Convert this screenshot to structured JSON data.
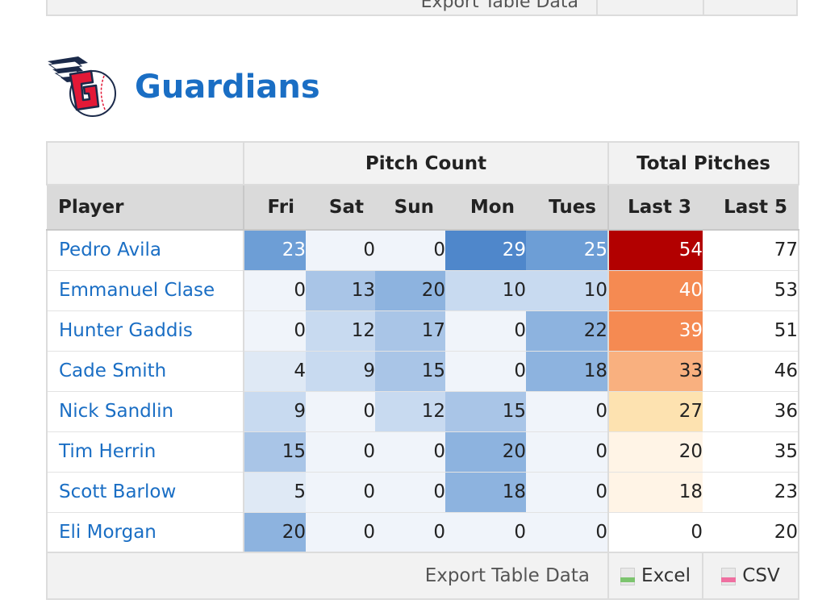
{
  "previous_footer": {
    "text": "Export Table Data"
  },
  "team": {
    "name": "Guardians",
    "logo": "guardians-wing-g-logo"
  },
  "table": {
    "group_headers": {
      "pitch_count": "Pitch Count",
      "total_pitches": "Total Pitches"
    },
    "columns": {
      "player": "Player",
      "fri": "Fri",
      "sat": "Sat",
      "sun": "Sun",
      "mon": "Mon",
      "tues": "Tues",
      "last3": "Last 3",
      "last5": "Last 5"
    },
    "rows": [
      {
        "player": "Pedro Avila",
        "fri": "23",
        "sat": "0",
        "sun": "0",
        "mon": "29",
        "tues": "25",
        "last3": "54",
        "last5": "77"
      },
      {
        "player": "Emmanuel Clase",
        "fri": "0",
        "sat": "13",
        "sun": "20",
        "mon": "10",
        "tues": "10",
        "last3": "40",
        "last5": "53"
      },
      {
        "player": "Hunter Gaddis",
        "fri": "0",
        "sat": "12",
        "sun": "17",
        "mon": "0",
        "tues": "22",
        "last3": "39",
        "last5": "51"
      },
      {
        "player": "Cade Smith",
        "fri": "4",
        "sat": "9",
        "sun": "15",
        "mon": "0",
        "tues": "18",
        "last3": "33",
        "last5": "46"
      },
      {
        "player": "Nick Sandlin",
        "fri": "9",
        "sat": "0",
        "sun": "12",
        "mon": "15",
        "tues": "0",
        "last3": "27",
        "last5": "36"
      },
      {
        "player": "Tim Herrin",
        "fri": "15",
        "sat": "0",
        "sun": "0",
        "mon": "20",
        "tues": "0",
        "last3": "20",
        "last5": "35"
      },
      {
        "player": "Scott Barlow",
        "fri": "5",
        "sat": "0",
        "sun": "0",
        "mon": "18",
        "tues": "0",
        "last3": "18",
        "last5": "23"
      },
      {
        "player": "Eli Morgan",
        "fri": "20",
        "sat": "0",
        "sun": "0",
        "mon": "0",
        "tues": "0",
        "last3": "0",
        "last5": "20"
      }
    ],
    "footer": {
      "export_label": "Export Table Data",
      "excel": "Excel",
      "csv": "CSV"
    }
  },
  "colors": {
    "link": "#1a6ec4",
    "pitch_scale": [
      "#f0f4fa",
      "#dfe9f5",
      "#c8daf0",
      "#a9c5e7",
      "#8db3df",
      "#6d9ed6",
      "#4f87cb"
    ],
    "total_scale": [
      "#ffffff",
      "#fff4e6",
      "#fde2b0",
      "#f9b07f",
      "#f58a52",
      "#b20000"
    ]
  }
}
